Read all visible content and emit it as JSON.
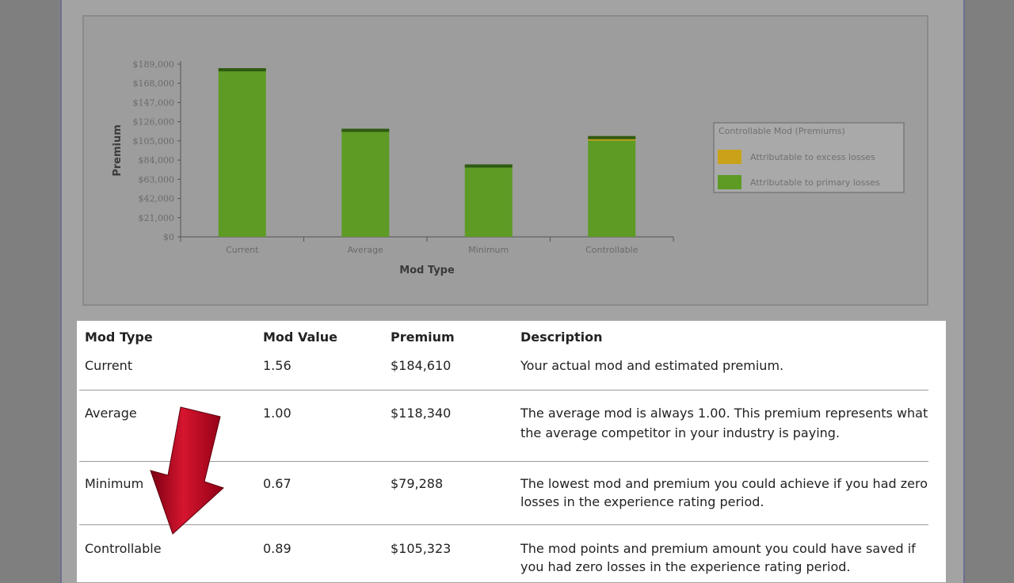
{
  "chart_data": {
    "type": "bar",
    "stacked": true,
    "title": "",
    "xlabel": "Mod Type",
    "ylabel": "Premium",
    "categories": [
      "Current",
      "Average",
      "Minimum",
      "Controllable"
    ],
    "yticks": [
      "$0",
      "$21,000",
      "$42,000",
      "$63,000",
      "$84,000",
      "$105,000",
      "$126,000",
      "$147,000",
      "$168,000",
      "$189,000"
    ],
    "ylim": [
      0,
      189000
    ],
    "series": [
      {
        "name": "Attributable to primary losses",
        "values": [
          184610,
          118340,
          79288,
          105323
        ],
        "color": "#5d9b25"
      },
      {
        "name": "Attributable to excess losses",
        "values": [
          0,
          0,
          0,
          5000
        ],
        "color": "#c9a219"
      }
    ],
    "legend": {
      "title": "Controllable Mod (Premiums)",
      "position": "right"
    },
    "grid": false
  },
  "table": {
    "headers": {
      "mod_type": "Mod Type",
      "mod_value": "Mod Value",
      "premium": "Premium",
      "description": "Description"
    },
    "rows": [
      {
        "mod_type": "Current",
        "mod_value": "1.56",
        "premium": "$184,610",
        "desc1": "Your actual mod and estimated premium.",
        "desc2": ""
      },
      {
        "mod_type": "Average",
        "mod_value": "1.00",
        "premium": "$118,340",
        "desc1": "The average mod is always 1.00. This premium represents what",
        "desc2": "the average competitor in your industry is paying."
      },
      {
        "mod_type": "Minimum",
        "mod_value": "0.67",
        "premium": "$79,288",
        "desc1": "The lowest mod and premium you could achieve if you had zero",
        "desc2": "losses in the experience rating period."
      },
      {
        "mod_type": "Controllable",
        "mod_value": "0.89",
        "premium": "$105,323",
        "desc1": "The mod points and premium amount you could have saved if",
        "desc2": "you had zero losses in the experience rating period."
      }
    ]
  },
  "arrow": {
    "icon": "red-down-arrow-icon",
    "color": "#c8102e"
  }
}
